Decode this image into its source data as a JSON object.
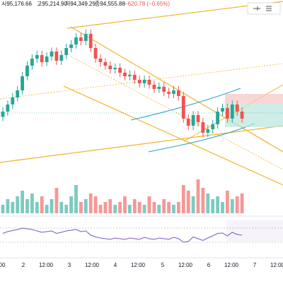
{
  "header": {
    "open": "시95,176.66",
    "high": "고95,214.90",
    "low": "저94,349.29",
    "close": "종94,555.88",
    "change": "−620.78 (−0.65%)"
  },
  "x_labels": [
    "00",
    "2",
    "12:00",
    "3",
    "12:00",
    "4",
    "12:00",
    "5",
    "12:00",
    "6",
    "12:00",
    "7",
    "12:00"
  ],
  "chart_data": {
    "type": "candlestick",
    "candles": [
      [
        94600,
        94780,
        94520,
        94700
      ],
      [
        94700,
        94910,
        94620,
        94834
      ],
      [
        94834,
        95050,
        94750,
        94967
      ],
      [
        94967,
        95180,
        94890,
        95100
      ],
      [
        95100,
        95450,
        95020,
        95367
      ],
      [
        95367,
        95650,
        95290,
        95567
      ],
      [
        95567,
        95780,
        95490,
        95700
      ],
      [
        95700,
        95850,
        95620,
        95767
      ],
      [
        95767,
        95850,
        95550,
        95634
      ],
      [
        95634,
        95820,
        95560,
        95740
      ],
      [
        95740,
        95910,
        95660,
        95834
      ],
      [
        95834,
        95910,
        95580,
        95660
      ],
      [
        95660,
        95850,
        95580,
        95767
      ],
      [
        95767,
        95980,
        95690,
        95900
      ],
      [
        95900,
        96050,
        95820,
        95967
      ],
      [
        95967,
        96180,
        95890,
        96100
      ],
      [
        96100,
        96180,
        95950,
        96033
      ],
      [
        96033,
        96250,
        95950,
        96167
      ],
      [
        96167,
        96250,
        95820,
        95900
      ],
      [
        95900,
        95980,
        95620,
        95700
      ],
      [
        95700,
        95780,
        95550,
        95634
      ],
      [
        95634,
        95710,
        95490,
        95567
      ],
      [
        95567,
        95650,
        95420,
        95500
      ],
      [
        95500,
        95610,
        95420,
        95527
      ],
      [
        95527,
        95610,
        95350,
        95434
      ],
      [
        95434,
        95510,
        95290,
        95367
      ],
      [
        95367,
        95480,
        95290,
        95394
      ],
      [
        95394,
        95470,
        95220,
        95300
      ],
      [
        95300,
        95380,
        95150,
        95234
      ],
      [
        95234,
        95380,
        95150,
        95300
      ],
      [
        95300,
        95380,
        95130,
        95207
      ],
      [
        95207,
        95290,
        95050,
        95127
      ],
      [
        95127,
        95250,
        95050,
        95167
      ],
      [
        95167,
        95250,
        94990,
        95074
      ],
      [
        95074,
        95150,
        94950,
        95034
      ],
      [
        95034,
        95180,
        94950,
        95100
      ],
      [
        95100,
        95180,
        94910,
        94994
      ],
      [
        94994,
        95070,
        94490,
        94567
      ],
      [
        94567,
        94650,
        94350,
        94434
      ],
      [
        94434,
        94710,
        94350,
        94634
      ],
      [
        94634,
        94710,
        94420,
        94500
      ],
      [
        94500,
        94580,
        94220,
        94301
      ],
      [
        94301,
        94450,
        94220,
        94367
      ],
      [
        94367,
        94540,
        94290,
        94461
      ],
      [
        94461,
        94780,
        94380,
        94700
      ],
      [
        94700,
        94850,
        94620,
        94767
      ],
      [
        94767,
        94850,
        94490,
        94567
      ],
      [
        94567,
        94910,
        94490,
        94834
      ],
      [
        94834,
        94910,
        94620,
        94700
      ],
      [
        94700,
        94780,
        94490,
        94567
      ]
    ],
    "volumes": [
      3,
      5,
      4,
      6,
      8,
      5,
      7,
      4,
      6,
      3,
      5,
      9,
      4,
      3,
      6,
      10,
      4,
      5,
      7,
      6,
      3,
      4,
      5,
      3,
      4,
      6,
      3,
      5,
      4,
      3,
      6,
      4,
      3,
      5,
      4,
      3,
      4,
      10,
      8,
      6,
      12,
      9,
      7,
      5,
      6,
      4,
      8,
      5,
      6,
      7
    ],
    "rsi": [
      55,
      60,
      63,
      66,
      70,
      68,
      66,
      62,
      58,
      60,
      62,
      55,
      58,
      62,
      64,
      66,
      60,
      62,
      50,
      45,
      42,
      40,
      38,
      42,
      40,
      38,
      42,
      40,
      38,
      44,
      40,
      38,
      42,
      40,
      38,
      44,
      40,
      30,
      32,
      45,
      40,
      35,
      42,
      48,
      55,
      56,
      48,
      58,
      52,
      50
    ],
    "ylim": [
      93500,
      96700
    ],
    "rsi_lim": [
      0,
      100
    ],
    "rsi_band": [
      30,
      70
    ],
    "colors": {
      "up": "#26a69a",
      "down": "#ef5350",
      "rsi": "#7e57c2"
    }
  }
}
